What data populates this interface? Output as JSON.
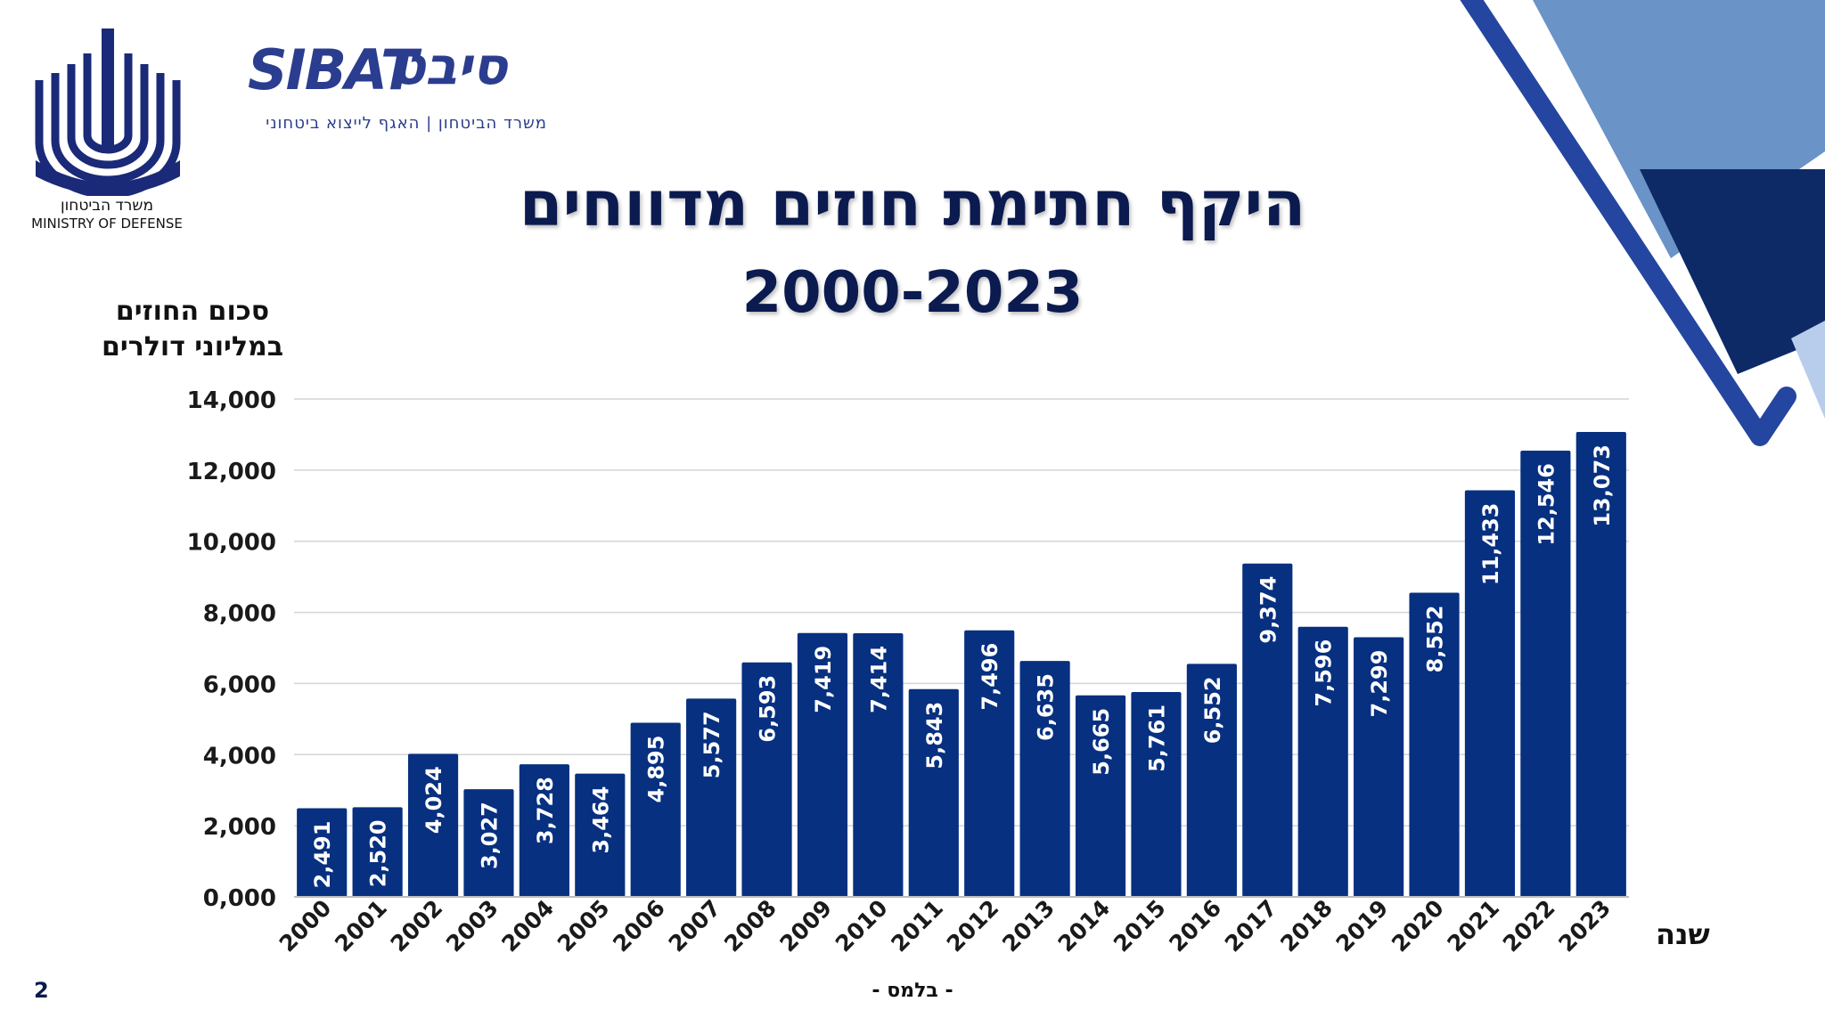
{
  "header": {
    "title": "היקף חתימת חוזים מדווחים",
    "subtitle": "2000-2023"
  },
  "logos": {
    "mod_hebrew": "משרד הביטחון",
    "mod_english": "MINISTRY OF DEFENSE",
    "sibat_latin": "SIBAT",
    "sibat_hebrew": "סיבט",
    "sibat_tagline": "משרד הביטחון | האגף לייצוא ביטחוני",
    "mod_logo_icon": "ministry-of-defense-emblem-icon"
  },
  "footer": {
    "classification": "- בלמס -",
    "page_number": "2"
  },
  "colors": {
    "bar": "#073080",
    "title": "#0b1a4f",
    "decor_dark": "#0d2a66",
    "decor_mid": "#2446a0",
    "decor_light": "#6a93c8",
    "decor_pale": "#b8cdec"
  },
  "chart_data": {
    "type": "bar",
    "title": "היקף חתימת חוזים מדווחים",
    "subtitle": "2000-2023",
    "xlabel": "שנה",
    "ylabel": "סכום החוזים במליוני דולרים",
    "ylabel_lines": [
      "סכום החוזים",
      "במליוני דולרים"
    ],
    "ylim": [
      0,
      14000
    ],
    "yticks": [
      "0,000",
      "2,000",
      "4,000",
      "6,000",
      "8,000",
      "10,000",
      "12,000",
      "14,000"
    ],
    "grid": true,
    "categories": [
      "2000",
      "2001",
      "2002",
      "2003",
      "2004",
      "2005",
      "2006",
      "2007",
      "2008",
      "2009",
      "2010",
      "2011",
      "2012",
      "2013",
      "2014",
      "2015",
      "2016",
      "2017",
      "2018",
      "2019",
      "2020",
      "2021",
      "2022",
      "2023"
    ],
    "values": [
      2491,
      2520,
      4024,
      3027,
      3728,
      3464,
      4895,
      5577,
      6593,
      7419,
      7414,
      5843,
      7496,
      6635,
      5665,
      5761,
      6552,
      9374,
      7596,
      7299,
      8552,
      11433,
      12546,
      13073
    ],
    "value_labels": [
      "2,491",
      "2,520",
      "4,024",
      "3,027",
      "3,728",
      "3,464",
      "4,895",
      "5,577",
      "6,593",
      "7,419",
      "7,414",
      "5,843",
      "7,496",
      "6,635",
      "5,665",
      "5,761",
      "6,552",
      "9,374",
      "7,596",
      "7,299",
      "8,552",
      "11,433",
      "12,546",
      "13,073"
    ]
  }
}
